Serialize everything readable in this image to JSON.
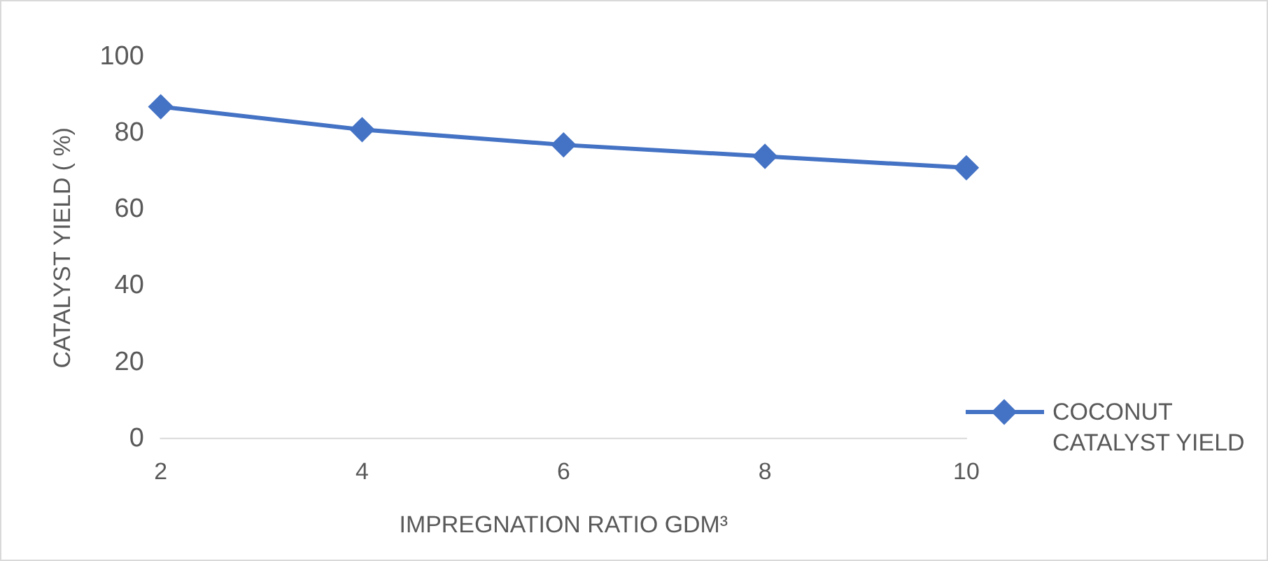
{
  "chart_data": {
    "type": "line",
    "xlabel": "IMPREGNATION RATIO GDM³",
    "ylabel": "CATALYST YIELD ( %)",
    "categories": [
      "2",
      "4",
      "6",
      "8",
      "10"
    ],
    "series": [
      {
        "name": "COCONUT CATALYST YIELD",
        "color": "#4472c4",
        "values": [
          87,
          81,
          77,
          74,
          71
        ]
      }
    ],
    "ylim": [
      0,
      100
    ],
    "yticks": [
      0,
      20,
      40,
      60,
      80,
      100
    ],
    "grid": false,
    "legend": "bottom right",
    "marker": "diamond",
    "line_style": "solid"
  }
}
